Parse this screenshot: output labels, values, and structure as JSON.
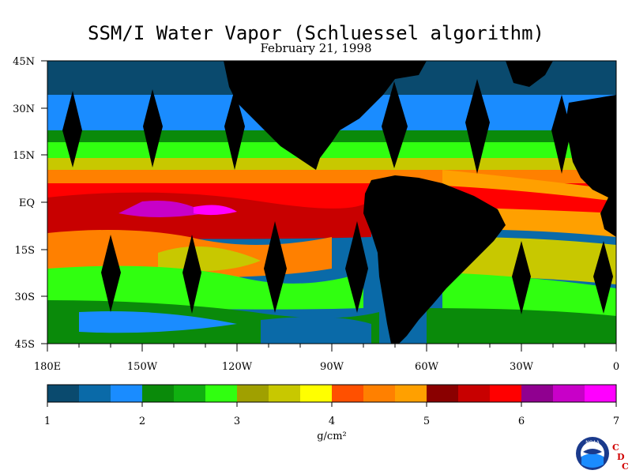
{
  "title": "SSM/I Water Vapor (Schluessel algorithm)",
  "date": "February 21, 1998",
  "lat_labels": [
    "45N",
    "30N",
    "15N",
    "EQ",
    "15S",
    "30S",
    "45S"
  ],
  "lon_labels": [
    "180E",
    "150W",
    "120W",
    "90W",
    "60W",
    "30W",
    "0"
  ],
  "colorbar": {
    "unit_label": "g/cm²",
    "tick_labels": [
      "1",
      "2",
      "3",
      "4",
      "5",
      "6",
      "7"
    ],
    "colors": [
      "#0a4a6e",
      "#0a6aa8",
      "#1a8cff",
      "#0a8a0a",
      "#10b010",
      "#30ff10",
      "#a0a000",
      "#c8c800",
      "#ffff00",
      "#ff5000",
      "#ff8000",
      "#ffa000",
      "#8a0000",
      "#c80000",
      "#ff0000",
      "#900090",
      "#c800c8",
      "#ff00ff"
    ]
  },
  "logo": {
    "noaa_text": "NOAA",
    "letters": [
      "C",
      "D",
      "C"
    ]
  }
}
